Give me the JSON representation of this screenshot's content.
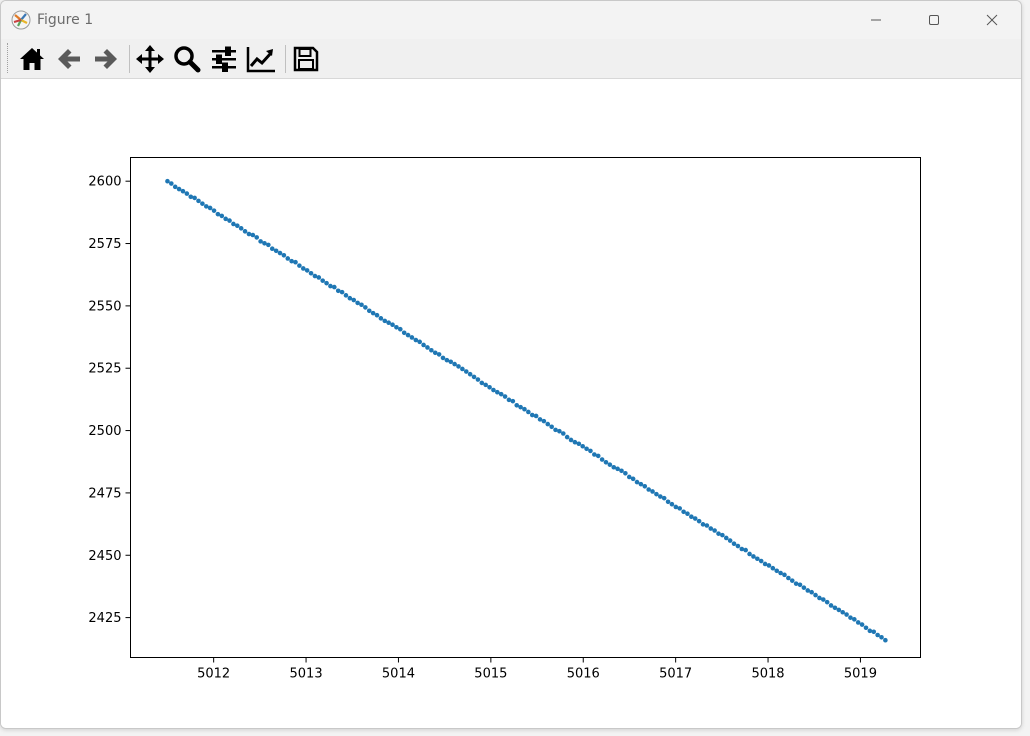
{
  "window": {
    "title": "Figure 1",
    "controls": [
      "minimize",
      "maximize",
      "close"
    ]
  },
  "toolbar": {
    "buttons": [
      {
        "name": "home",
        "icon": "home-icon"
      },
      {
        "name": "back",
        "icon": "arrow-left-icon"
      },
      {
        "name": "forward",
        "icon": "arrow-right-icon"
      },
      {
        "name": "pan",
        "icon": "move-icon"
      },
      {
        "name": "zoom",
        "icon": "zoom-icon"
      },
      {
        "name": "configure-subplots",
        "icon": "sliders-icon"
      },
      {
        "name": "edit-axis",
        "icon": "line-chart-icon"
      },
      {
        "name": "save",
        "icon": "save-icon"
      }
    ]
  },
  "colors": {
    "series": "#1f77b4",
    "axes": "#000000",
    "background": "#ffffff",
    "toolbar_icon": "#000000",
    "toolbar_icon_disabled": "#5a5a5a"
  },
  "chart_data": {
    "type": "scatter",
    "title": "",
    "xlabel": "",
    "ylabel": "",
    "xlim": [
      5011.1,
      5019.65
    ],
    "ylim": [
      2409,
      2609.5
    ],
    "xticks": [
      5012,
      5013,
      5014,
      5015,
      5016,
      5017,
      5018,
      5019
    ],
    "yticks": [
      2425,
      2450,
      2475,
      2500,
      2525,
      2550,
      2575,
      2600
    ],
    "grid": false,
    "legend": "none",
    "series": [
      {
        "marker": "dot",
        "x_start": 5011.5,
        "x_end": 5019.27,
        "point_count": 186,
        "y_start": 2600,
        "y_end": 2416
      }
    ]
  }
}
